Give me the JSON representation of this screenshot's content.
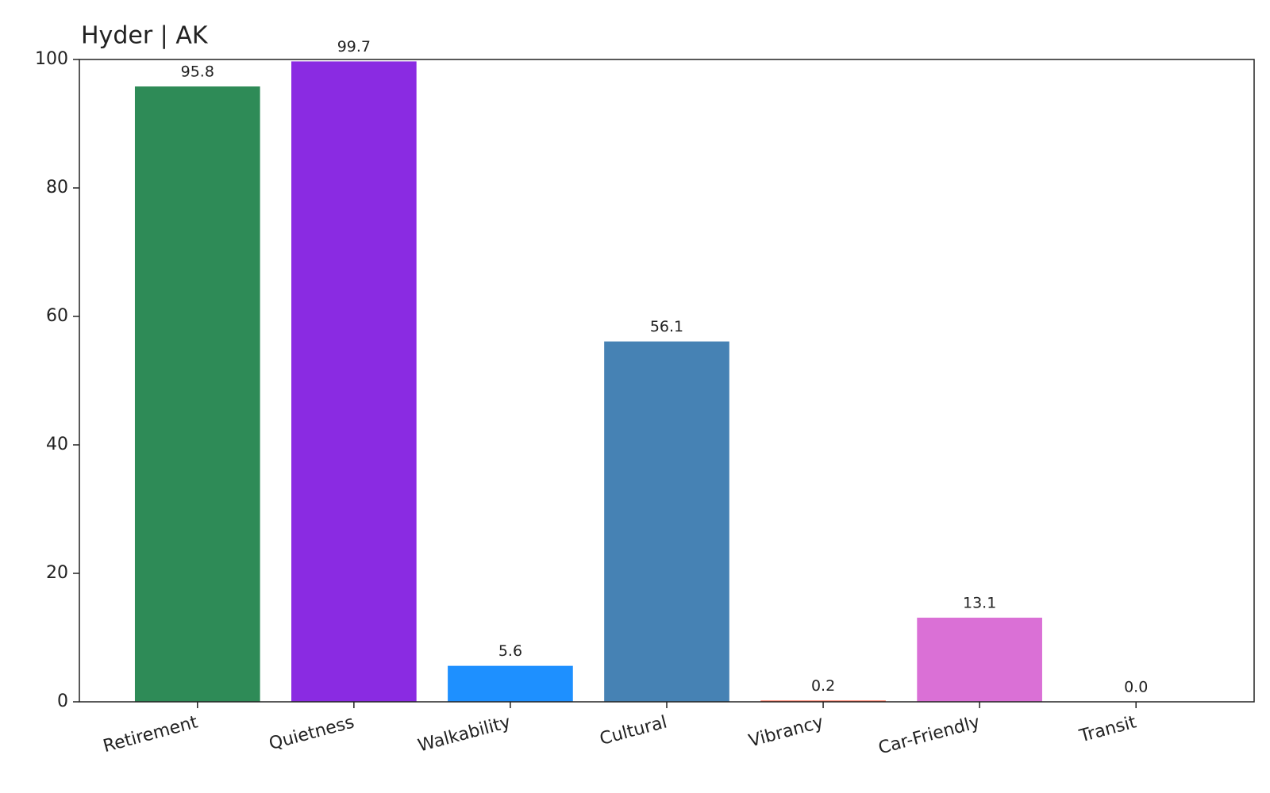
{
  "chart_data": {
    "type": "bar",
    "title": "Hyder | AK",
    "categories": [
      "Retirement",
      "Quietness",
      "Walkability",
      "Cultural",
      "Vibrancy",
      "Car-Friendly",
      "Transit"
    ],
    "values": [
      95.8,
      99.7,
      5.6,
      56.1,
      0.2,
      13.1,
      0
    ],
    "value_labels": [
      "95.8",
      "99.7",
      "5.6",
      "56.1",
      "0.2",
      "13.1",
      "0.0"
    ],
    "colors": [
      "#2e8b57",
      "#8a2be2",
      "#1e90ff",
      "#4682b4",
      "#ff6347",
      "#da70d6",
      "#ffd700"
    ],
    "ylim": [
      0,
      100
    ],
    "yticks": [
      0,
      20,
      40,
      60,
      80,
      100
    ],
    "grid": false
  }
}
